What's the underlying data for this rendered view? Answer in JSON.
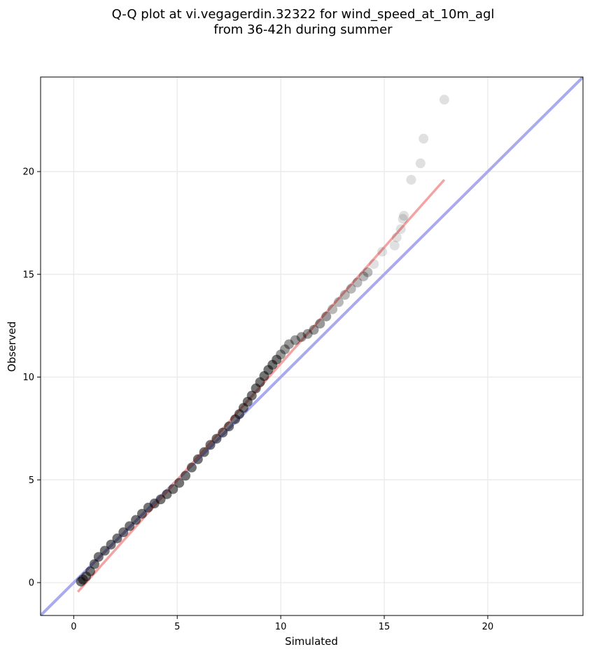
{
  "chart_data": {
    "type": "scatter",
    "title_lines": [
      "Q-Q plot at vi.vegagerdin.32322 for wind_speed_at_10m_agl",
      "from 36-42h during summer"
    ],
    "xlabel": "Simulated",
    "ylabel": "Observed",
    "xlim": [
      -1.6,
      24.6
    ],
    "ylim": [
      -1.6,
      24.6
    ],
    "xticks": [
      0,
      5,
      10,
      15,
      20
    ],
    "yticks": [
      0,
      5,
      10,
      15,
      20
    ],
    "grid": true,
    "reference_line": {
      "name": "y = x",
      "color": "#aaaaee"
    },
    "fit_line": {
      "x": [
        0.2,
        17.9
      ],
      "y": [
        -0.45,
        19.6
      ],
      "color": "#f4a3a3"
    },
    "points": {
      "color": "#000000",
      "x": [
        0.35,
        0.45,
        0.6,
        0.8,
        1.0,
        1.2,
        1.5,
        1.8,
        2.1,
        2.4,
        2.7,
        3.0,
        3.3,
        3.6,
        3.9,
        4.2,
        4.5,
        4.8,
        5.1,
        5.4,
        5.7,
        6.0,
        6.3,
        6.6,
        6.9,
        7.2,
        7.5,
        7.8,
        8.0,
        8.2,
        8.4,
        8.6,
        8.8,
        9.0,
        9.2,
        9.4,
        9.6,
        9.8,
        10.0,
        10.2,
        10.4,
        10.7,
        11.0,
        11.3,
        11.6,
        11.9,
        12.2,
        12.5,
        12.8,
        13.1,
        13.4,
        13.7,
        14.0,
        14.2,
        14.5,
        14.9,
        15.5,
        15.6,
        15.8,
        15.9,
        15.95,
        16.3,
        16.75,
        16.9,
        17.9
      ],
      "y": [
        0.05,
        0.15,
        0.3,
        0.55,
        0.9,
        1.25,
        1.55,
        1.85,
        2.15,
        2.45,
        2.75,
        3.05,
        3.35,
        3.65,
        3.85,
        4.05,
        4.3,
        4.55,
        4.85,
        5.2,
        5.6,
        6.0,
        6.35,
        6.7,
        7.0,
        7.3,
        7.6,
        7.95,
        8.2,
        8.5,
        8.8,
        9.1,
        9.45,
        9.75,
        10.05,
        10.35,
        10.6,
        10.85,
        11.1,
        11.35,
        11.6,
        11.8,
        11.95,
        12.1,
        12.3,
        12.6,
        12.95,
        13.3,
        13.65,
        14.0,
        14.3,
        14.6,
        14.9,
        15.1,
        15.5,
        16.1,
        16.4,
        16.8,
        17.2,
        17.7,
        17.85,
        19.6,
        20.4,
        21.6,
        23.5
      ]
    }
  }
}
